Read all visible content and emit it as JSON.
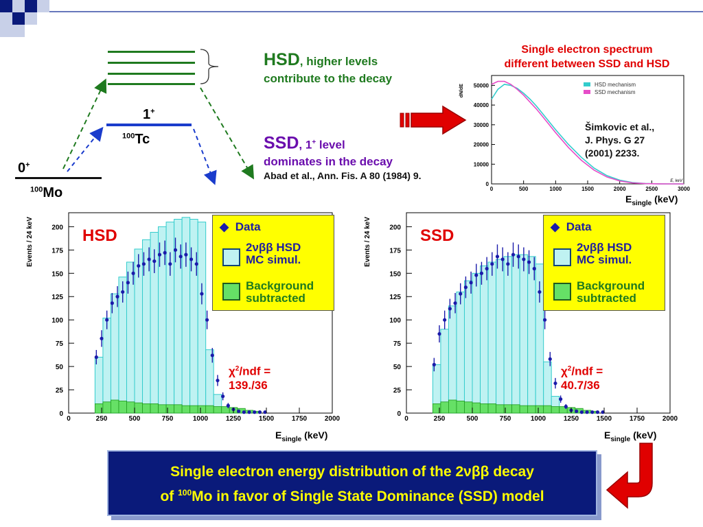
{
  "level_scheme": {
    "mo_spin": "0",
    "mo_parity": "+",
    "mo_mass": "100",
    "mo_element": "Mo",
    "tc_spin": "1",
    "tc_parity": "+",
    "tc_mass": "100",
    "tc_element": "Tc"
  },
  "hsd_note": {
    "head": "HSD",
    "rest": ", higher levels",
    "line2": "contribute to the decay"
  },
  "ssd_note": {
    "head": "SSD",
    "rest1": ", 1",
    "rest_sup": "+",
    "rest2": " level",
    "line2": "dominates in the decay",
    "ref": "Abad et al., Ann. Fis. A 80 (1984) 9."
  },
  "spectrum_title": {
    "line1": "Single electron spectrum",
    "line2": "different between SSD and HSD"
  },
  "spectrum_ref": {
    "line1": "Šimkovic et al.,",
    "line2": "J. Phys. G 27",
    "line3": "(2001) 2233."
  },
  "spectrum_axis": {
    "xlabel_main": "E",
    "xlabel_sub": "single",
    "xlabel_unit": " (keV)",
    "ylabel": "dN/dE",
    "inner_xlabel": "E, keV"
  },
  "chart_data": [
    {
      "type": "line",
      "title": "Single electron spectrum different between SSD and HSD",
      "xlabel": "E single (keV)",
      "ylabel": "dN/dE",
      "xlim": [
        0,
        3000
      ],
      "ylim": [
        0,
        55000
      ],
      "x_ticks": [
        0,
        500,
        1000,
        1500,
        2000,
        2500,
        3000
      ],
      "y_ticks": [
        0,
        10000,
        20000,
        30000,
        40000,
        50000
      ],
      "legend_position": "top-right",
      "series": [
        {
          "name": "HSD mechanism",
          "color": "#33cccc",
          "x": [
            0,
            100,
            200,
            300,
            400,
            500,
            600,
            700,
            800,
            900,
            1000,
            1200,
            1400,
            1600,
            1800,
            2000,
            2200,
            2400,
            2600,
            2800,
            3000
          ],
          "y": [
            43000,
            48000,
            50500,
            50000,
            48500,
            46000,
            43000,
            39500,
            35500,
            31500,
            27500,
            20000,
            13500,
            8000,
            4200,
            1900,
            700,
            200,
            50,
            10,
            0
          ]
        },
        {
          "name": "SSD mechanism",
          "color": "#e64dc8",
          "x": [
            0,
            100,
            200,
            300,
            400,
            500,
            600,
            700,
            800,
            900,
            1000,
            1200,
            1400,
            1600,
            1800,
            2000,
            2200,
            2400,
            2600,
            2800,
            3000
          ],
          "y": [
            50500,
            52000,
            52000,
            50500,
            48000,
            45000,
            41500,
            38000,
            34000,
            30000,
            26000,
            18500,
            12000,
            7000,
            3500,
            1500,
            500,
            150,
            40,
            10,
            0
          ]
        }
      ]
    },
    {
      "type": "bar",
      "title": "HSD",
      "xlabel": "E single (keV)",
      "ylabel": "Events / 24 keV",
      "xlim": [
        0,
        2000
      ],
      "ylim": [
        0,
        215
      ],
      "x_ticks": [
        0,
        250,
        500,
        750,
        1000,
        1250,
        1500,
        1750,
        2000
      ],
      "y_ticks": [
        0,
        25,
        50,
        75,
        100,
        125,
        150,
        175,
        200
      ],
      "annotation": "χ2/ndf = 139./36",
      "legend": [
        "Data",
        "2νββ HSD MC simul.",
        "Background subtracted"
      ],
      "mc_x": [
        200,
        260,
        320,
        380,
        440,
        500,
        560,
        620,
        680,
        740,
        800,
        860,
        920,
        980,
        1040,
        1100,
        1160,
        1220,
        1280,
        1340,
        1400
      ],
      "mc_values": [
        60,
        102,
        128,
        146,
        162,
        176,
        186,
        194,
        200,
        205,
        208,
        210,
        208,
        205,
        68,
        20,
        6,
        2,
        1,
        0,
        0
      ],
      "data_x": [
        210,
        250,
        290,
        330,
        370,
        410,
        450,
        490,
        530,
        570,
        610,
        650,
        690,
        730,
        770,
        810,
        850,
        890,
        930,
        970,
        1010,
        1050,
        1090,
        1130,
        1170,
        1210,
        1250,
        1290,
        1330,
        1370,
        1410,
        1450,
        1490
      ],
      "data_values": [
        60,
        80,
        100,
        118,
        125,
        130,
        140,
        150,
        158,
        160,
        165,
        163,
        170,
        172,
        160,
        175,
        168,
        170,
        165,
        160,
        128,
        100,
        62,
        35,
        18,
        8,
        4,
        2,
        1,
        1,
        1,
        1,
        1
      ],
      "background_values": [
        10,
        12,
        14,
        13,
        12,
        11,
        10,
        10,
        9,
        9,
        9,
        8,
        8,
        8,
        8,
        7,
        7,
        6,
        5,
        3,
        2
      ]
    },
    {
      "type": "bar",
      "title": "SSD",
      "xlabel": "E single (keV)",
      "ylabel": "Events / 24 keV",
      "xlim": [
        0,
        2000
      ],
      "ylim": [
        0,
        215
      ],
      "x_ticks": [
        0,
        250,
        500,
        750,
        1000,
        1250,
        1500,
        1750,
        2000
      ],
      "y_ticks": [
        0,
        25,
        50,
        75,
        100,
        125,
        150,
        175,
        200
      ],
      "annotation": "χ2/ndf = 40.7/36",
      "legend": [
        "Data",
        "2νββ HSD MC simul.",
        "Background subtracted"
      ],
      "mc_x": [
        200,
        260,
        320,
        380,
        440,
        500,
        560,
        620,
        680,
        740,
        800,
        860,
        920,
        980,
        1040,
        1100,
        1160,
        1220,
        1280,
        1340,
        1400
      ],
      "mc_values": [
        52,
        90,
        115,
        130,
        142,
        150,
        158,
        162,
        165,
        168,
        170,
        170,
        168,
        160,
        55,
        18,
        6,
        2,
        1,
        0,
        0
      ],
      "data_x": [
        210,
        250,
        290,
        330,
        370,
        410,
        450,
        490,
        530,
        570,
        610,
        650,
        690,
        730,
        770,
        810,
        850,
        890,
        930,
        970,
        1010,
        1050,
        1090,
        1130,
        1170,
        1210,
        1250,
        1290,
        1330,
        1370,
        1410,
        1450,
        1490
      ],
      "data_values": [
        52,
        85,
        100,
        112,
        118,
        128,
        135,
        140,
        148,
        150,
        155,
        160,
        168,
        165,
        160,
        170,
        168,
        165,
        162,
        155,
        130,
        100,
        58,
        32,
        15,
        7,
        3,
        2,
        1,
        1,
        1,
        1,
        1
      ],
      "background_values": [
        10,
        12,
        14,
        13,
        12,
        11,
        10,
        10,
        9,
        9,
        9,
        8,
        8,
        8,
        8,
        7,
        7,
        6,
        5,
        3,
        2
      ]
    }
  ],
  "hsd_panel": {
    "title": "HSD",
    "ylabel": "Events / 24 keV",
    "legend_data": "Data",
    "legend_mc_1": "2νββ HSD",
    "legend_mc_2": "MC simul.",
    "legend_bg_1": "Background",
    "legend_bg_2": "subtracted",
    "chi_1": "χ",
    "chi_sup": "2",
    "chi_2": "/ndf =",
    "chi_value": "139./36",
    "xlabel_main": "E",
    "xlabel_sub": "single",
    "xlabel_unit": " (keV)"
  },
  "ssd_panel": {
    "title": "SSD",
    "ylabel": "Events / 24 keV",
    "legend_data": "Data",
    "legend_mc_1": "2νββ HSD",
    "legend_mc_2": "MC simul.",
    "legend_bg_1": "Background",
    "legend_bg_2": "subtracted",
    "chi_1": "χ",
    "chi_sup": "2",
    "chi_2": "/ndf =",
    "chi_value": "40.7/36",
    "xlabel_main": "E",
    "xlabel_sub": "single",
    "xlabel_unit": " (keV)"
  },
  "conclusion": {
    "line1": "Single electron energy distribution of the 2νββ decay",
    "line2_pre": "of ",
    "line2_sup": "100",
    "line2_post": "Mo in favor of Single State Dominance (SSD) model"
  },
  "colors": {
    "accent_red": "#e00000",
    "hsd_green": "#1f7a1f",
    "ssd_purple": "#6a0dad",
    "level_blue": "#1a3ccc",
    "banner_bg": "#0a1a7a",
    "banner_text": "#ffff00",
    "mc_fill": "#bff2f2",
    "mc_edge": "#33cccc",
    "bg_fill": "#66e066",
    "data_color": "#1a1aaa"
  }
}
